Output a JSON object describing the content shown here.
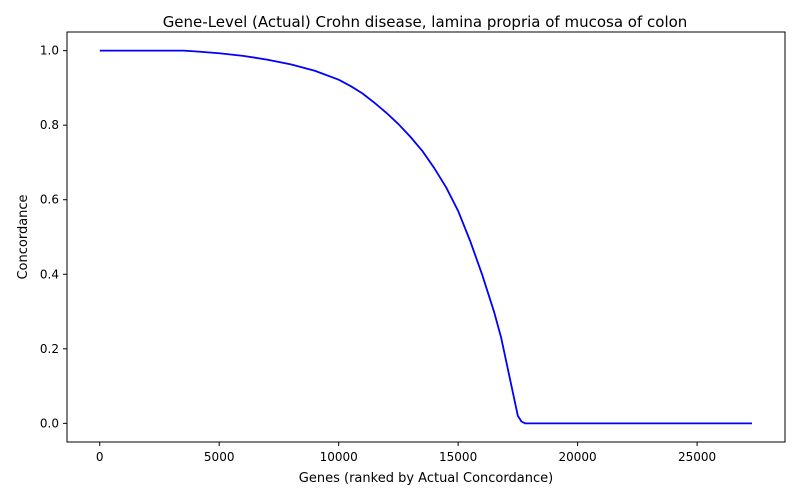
{
  "chart_data": {
    "type": "line",
    "title": "Gene-Level (Actual) Crohn disease, lamina propria of mucosa of colon",
    "xlabel": "Genes (ranked by Actual Concordance)",
    "ylabel": "Concordance",
    "xlim": [
      -1370,
      28680
    ],
    "ylim": [
      -0.05,
      1.05
    ],
    "xticks": [
      0,
      5000,
      10000,
      15000,
      20000,
      25000
    ],
    "xtick_labels": [
      "0",
      "5000",
      "10000",
      "15000",
      "20000",
      "25000"
    ],
    "yticks": [
      0.0,
      0.2,
      0.4,
      0.6,
      0.8,
      1.0
    ],
    "ytick_labels": [
      "0.0",
      "0.2",
      "0.4",
      "0.6",
      "0.8",
      "1.0"
    ],
    "grid": false,
    "legend": "none",
    "series": [
      {
        "color": "#0000ff",
        "x": [
          0,
          1000,
          2000,
          3000,
          3500,
          4000,
          5000,
          6000,
          7000,
          8000,
          9000,
          10000,
          10500,
          11000,
          11500,
          12000,
          12500,
          13000,
          13500,
          14000,
          14500,
          15000,
          15500,
          16000,
          16200,
          16500,
          16800,
          17100,
          17300,
          17500,
          17650,
          17800,
          17900,
          18500,
          20000,
          22000,
          24000,
          26000,
          27300
        ],
        "y": [
          1.0,
          1.0,
          1.0,
          1.0,
          1.0,
          0.998,
          0.993,
          0.986,
          0.976,
          0.963,
          0.946,
          0.922,
          0.905,
          0.885,
          0.86,
          0.833,
          0.803,
          0.769,
          0.731,
          0.685,
          0.633,
          0.57,
          0.49,
          0.4,
          0.36,
          0.3,
          0.23,
          0.14,
          0.08,
          0.02,
          0.005,
          0.0,
          0.0,
          0.0,
          0.0,
          0.0,
          0.0,
          0.0,
          0.0
        ]
      }
    ]
  }
}
